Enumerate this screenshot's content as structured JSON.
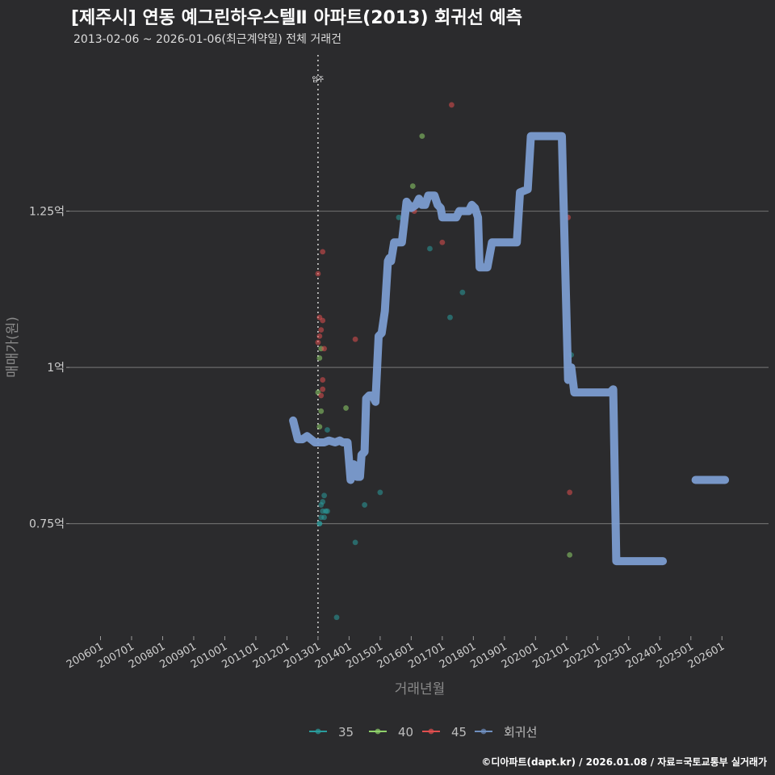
{
  "chart_data": {
    "type": "line+scatter",
    "title": "[제주시] 연동 예그린하우스텔Ⅱ 아파트(2013) 회귀선 예측",
    "subtitle": "2013-02-06 ~ 2026-01-06(최근계약일) 전체 거래건",
    "xlabel": "거래년월",
    "ylabel": "매매가(원)",
    "ylim": [
      0.57,
      1.5
    ],
    "xlim": [
      2005.0,
      2027.5
    ],
    "y_ticks": [
      {
        "value": 0.75,
        "label": "0.75억"
      },
      {
        "value": 1.0,
        "label": "1억"
      },
      {
        "value": 1.25,
        "label": "1.25억"
      }
    ],
    "x_ticks": [
      {
        "value": 2006.0,
        "label": "200601"
      },
      {
        "value": 2007.0,
        "label": "200701"
      },
      {
        "value": 2008.0,
        "label": "200801"
      },
      {
        "value": 2009.0,
        "label": "200901"
      },
      {
        "value": 2010.0,
        "label": "201001"
      },
      {
        "value": 2011.0,
        "label": "201101"
      },
      {
        "value": 2012.0,
        "label": "201201"
      },
      {
        "value": 2013.0,
        "label": "201301"
      },
      {
        "value": 2014.0,
        "label": "201401"
      },
      {
        "value": 2015.0,
        "label": "201501"
      },
      {
        "value": 2016.0,
        "label": "201601"
      },
      {
        "value": 2017.0,
        "label": "201701"
      },
      {
        "value": 2018.0,
        "label": "201801"
      },
      {
        "value": 2019.0,
        "label": "201901"
      },
      {
        "value": 2020.0,
        "label": "202001"
      },
      {
        "value": 2021.0,
        "label": "202101"
      },
      {
        "value": 2022.0,
        "label": "202201"
      },
      {
        "value": 2023.0,
        "label": "202301"
      },
      {
        "value": 2024.0,
        "label": "202401"
      },
      {
        "value": 2025.0,
        "label": "202501"
      },
      {
        "value": 2026.0,
        "label": "202601"
      }
    ],
    "annotation": {
      "x": 2013.0,
      "label": "입주"
    },
    "legend": [
      {
        "name": "35",
        "color": "#2a9d9d"
      },
      {
        "name": "40",
        "color": "#8fd16a"
      },
      {
        "name": "45",
        "color": "#e04f4f"
      },
      {
        "name": "회귀선",
        "color": "#6f8fbf"
      }
    ],
    "regression_line": {
      "name": "회귀선",
      "color": "#7b9cd0",
      "segments": [
        [
          [
            2012.2,
            0.915
          ],
          [
            2012.35,
            0.885
          ],
          [
            2012.5,
            0.885
          ],
          [
            2012.65,
            0.89
          ],
          [
            2012.9,
            0.88
          ],
          [
            2013.2,
            0.88
          ],
          [
            2013.35,
            0.883
          ],
          [
            2013.55,
            0.88
          ],
          [
            2013.7,
            0.883
          ],
          [
            2013.8,
            0.88
          ],
          [
            2013.95,
            0.88
          ],
          [
            2014.05,
            0.82
          ],
          [
            2014.15,
            0.845
          ],
          [
            2014.25,
            0.825
          ],
          [
            2014.35,
            0.825
          ],
          [
            2014.4,
            0.86
          ],
          [
            2014.5,
            0.865
          ],
          [
            2014.55,
            0.95
          ],
          [
            2014.65,
            0.955
          ],
          [
            2014.75,
            0.955
          ],
          [
            2014.85,
            0.945
          ],
          [
            2014.95,
            1.05
          ],
          [
            2015.05,
            1.055
          ],
          [
            2015.15,
            1.09
          ],
          [
            2015.25,
            1.17
          ],
          [
            2015.3,
            1.175
          ],
          [
            2015.35,
            1.17
          ],
          [
            2015.45,
            1.2
          ],
          [
            2015.7,
            1.2
          ],
          [
            2015.85,
            1.265
          ],
          [
            2016.0,
            1.255
          ],
          [
            2016.15,
            1.26
          ],
          [
            2016.25,
            1.27
          ],
          [
            2016.35,
            1.26
          ],
          [
            2016.45,
            1.26
          ],
          [
            2016.55,
            1.275
          ],
          [
            2016.75,
            1.275
          ],
          [
            2016.85,
            1.26
          ],
          [
            2016.95,
            1.255
          ],
          [
            2017.0,
            1.24
          ],
          [
            2017.45,
            1.24
          ],
          [
            2017.55,
            1.25
          ],
          [
            2017.85,
            1.25
          ],
          [
            2017.95,
            1.26
          ],
          [
            2018.05,
            1.255
          ],
          [
            2018.15,
            1.24
          ],
          [
            2018.2,
            1.16
          ],
          [
            2018.45,
            1.16
          ],
          [
            2018.6,
            1.2
          ],
          [
            2019.4,
            1.2
          ],
          [
            2019.5,
            1.28
          ],
          [
            2019.75,
            1.285
          ],
          [
            2019.85,
            1.37
          ],
          [
            2020.85,
            1.37
          ],
          [
            2021.05,
            0.98
          ],
          [
            2021.15,
            1.0
          ],
          [
            2021.25,
            0.96
          ],
          [
            2022.4,
            0.96
          ],
          [
            2022.5,
            0.965
          ],
          [
            2022.6,
            0.69
          ],
          [
            2024.1,
            0.69
          ]
        ],
        [
          [
            2025.15,
            0.82
          ],
          [
            2026.1,
            0.82
          ]
        ]
      ]
    },
    "series": [
      {
        "name": "35",
        "color": "#2a9d9d",
        "points": [
          [
            2013.05,
            0.75
          ],
          [
            2013.1,
            0.76
          ],
          [
            2013.15,
            0.77
          ],
          [
            2013.2,
            0.76
          ],
          [
            2013.25,
            0.77
          ],
          [
            2013.3,
            0.77
          ],
          [
            2013.1,
            0.78
          ],
          [
            2013.15,
            0.785
          ],
          [
            2013.2,
            0.795
          ],
          [
            2013.05,
            0.75
          ],
          [
            2013.3,
            0.9
          ],
          [
            2013.6,
            0.6
          ],
          [
            2014.2,
            0.72
          ],
          [
            2014.5,
            0.78
          ],
          [
            2015.0,
            0.8
          ],
          [
            2015.6,
            1.24
          ],
          [
            2016.6,
            1.19
          ],
          [
            2017.25,
            1.08
          ],
          [
            2017.65,
            1.12
          ],
          [
            2021.15,
            1.02
          ]
        ]
      },
      {
        "name": "40",
        "color": "#8fd16a",
        "points": [
          [
            2013.05,
            0.905
          ],
          [
            2013.1,
            0.93
          ],
          [
            2013.0,
            0.96
          ],
          [
            2013.05,
            1.015
          ],
          [
            2013.1,
            1.03
          ],
          [
            2013.9,
            0.935
          ],
          [
            2016.05,
            1.29
          ],
          [
            2016.35,
            1.37
          ],
          [
            2021.1,
            0.7
          ]
        ]
      },
      {
        "name": "45",
        "color": "#e04f4f",
        "points": [
          [
            2013.0,
            1.04
          ],
          [
            2013.05,
            1.05
          ],
          [
            2013.1,
            1.06
          ],
          [
            2013.15,
            1.075
          ],
          [
            2013.05,
            1.08
          ],
          [
            2013.0,
            1.15
          ],
          [
            2013.15,
            1.185
          ],
          [
            2013.1,
            0.955
          ],
          [
            2013.15,
            0.965
          ],
          [
            2013.15,
            0.98
          ],
          [
            2013.2,
            1.03
          ],
          [
            2014.2,
            1.045
          ],
          [
            2016.1,
            1.25
          ],
          [
            2017.0,
            1.2
          ],
          [
            2017.3,
            1.42
          ],
          [
            2021.05,
            1.24
          ],
          [
            2021.1,
            0.8
          ]
        ]
      }
    ]
  },
  "caption": "©디아파트(dapt.kr) / 2026.01.08 / 자료=국토교통부 실거래가"
}
